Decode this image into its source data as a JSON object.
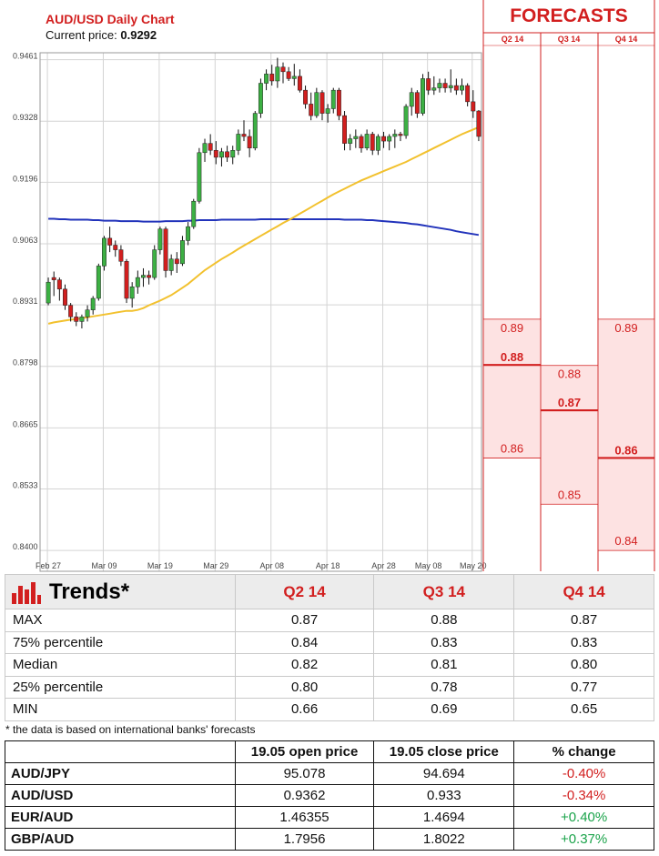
{
  "chart_data": {
    "type": "candlestick",
    "title": "AUD/USD Daily Chart",
    "current_price_label": "Current price:",
    "current_price": "0.9292",
    "ylim": [
      0.8355,
      0.9472
    ],
    "y_ticks": [
      "0.9461",
      "0.9328",
      "0.9196",
      "0.9063",
      "0.8931",
      "0.8798",
      "0.8665",
      "0.8533",
      "0.8400"
    ],
    "x_ticks": [
      "Feb 27",
      "Mar 09",
      "Mar 19",
      "Mar 29",
      "Apr 08",
      "Apr 18",
      "Apr 28",
      "May 08",
      "May 20"
    ],
    "grid": true,
    "candles": [
      [
        0.8935,
        0.899,
        0.893,
        0.898
      ],
      [
        0.899,
        0.9003,
        0.895,
        0.8985
      ],
      [
        0.8985,
        0.899,
        0.894,
        0.8965
      ],
      [
        0.8965,
        0.8975,
        0.892,
        0.893
      ],
      [
        0.893,
        0.8935,
        0.8895,
        0.8905
      ],
      [
        0.8905,
        0.8915,
        0.8885,
        0.8895
      ],
      [
        0.8895,
        0.891,
        0.888,
        0.8905
      ],
      [
        0.8905,
        0.893,
        0.8895,
        0.892
      ],
      [
        0.892,
        0.895,
        0.891,
        0.8945
      ],
      [
        0.8945,
        0.902,
        0.894,
        0.9015
      ],
      [
        0.9015,
        0.908,
        0.9005,
        0.9075
      ],
      [
        0.9075,
        0.91,
        0.9045,
        0.906
      ],
      [
        0.906,
        0.907,
        0.9035,
        0.905
      ],
      [
        0.905,
        0.906,
        0.9015,
        0.9025
      ],
      [
        0.9025,
        0.903,
        0.8935,
        0.8945
      ],
      [
        0.8945,
        0.898,
        0.8925,
        0.897
      ],
      [
        0.897,
        0.9005,
        0.8955,
        0.899
      ],
      [
        0.899,
        0.901,
        0.897,
        0.8995
      ],
      [
        0.8995,
        0.9005,
        0.8975,
        0.899
      ],
      [
        0.899,
        0.906,
        0.8985,
        0.905
      ],
      [
        0.905,
        0.91,
        0.904,
        0.9095
      ],
      [
        0.9095,
        0.91,
        0.899,
        0.9005
      ],
      [
        0.9005,
        0.904,
        0.8995,
        0.903
      ],
      [
        0.903,
        0.9045,
        0.9,
        0.902
      ],
      [
        0.902,
        0.908,
        0.9015,
        0.907
      ],
      [
        0.907,
        0.911,
        0.906,
        0.91
      ],
      [
        0.91,
        0.916,
        0.9095,
        0.9155
      ],
      [
        0.9155,
        0.927,
        0.915,
        0.926
      ],
      [
        0.926,
        0.929,
        0.924,
        0.928
      ],
      [
        0.928,
        0.93,
        0.9255,
        0.9265
      ],
      [
        0.9265,
        0.9285,
        0.9235,
        0.925
      ],
      [
        0.925,
        0.927,
        0.923,
        0.9262
      ],
      [
        0.9262,
        0.9275,
        0.924,
        0.925
      ],
      [
        0.925,
        0.9275,
        0.9235,
        0.9265
      ],
      [
        0.9265,
        0.931,
        0.9255,
        0.93
      ],
      [
        0.93,
        0.933,
        0.9285,
        0.9295
      ],
      [
        0.9295,
        0.931,
        0.925,
        0.927
      ],
      [
        0.927,
        0.935,
        0.9265,
        0.9345
      ],
      [
        0.9345,
        0.942,
        0.9335,
        0.941
      ],
      [
        0.941,
        0.944,
        0.9395,
        0.943
      ],
      [
        0.943,
        0.945,
        0.9405,
        0.9415
      ],
      [
        0.9415,
        0.9465,
        0.94,
        0.9445
      ],
      [
        0.9445,
        0.9455,
        0.941,
        0.9435
      ],
      [
        0.9435,
        0.9445,
        0.9415,
        0.942
      ],
      [
        0.942,
        0.9452,
        0.9405,
        0.9425
      ],
      [
        0.9425,
        0.944,
        0.939,
        0.9395
      ],
      [
        0.9395,
        0.9405,
        0.9355,
        0.9365
      ],
      [
        0.9365,
        0.939,
        0.933,
        0.934
      ],
      [
        0.934,
        0.94,
        0.9335,
        0.939
      ],
      [
        0.939,
        0.9395,
        0.933,
        0.9345
      ],
      [
        0.9345,
        0.9365,
        0.9325,
        0.9355
      ],
      [
        0.9355,
        0.94,
        0.9345,
        0.9395
      ],
      [
        0.9395,
        0.94,
        0.933,
        0.934
      ],
      [
        0.934,
        0.935,
        0.9265,
        0.928
      ],
      [
        0.928,
        0.93,
        0.9265,
        0.929
      ],
      [
        0.929,
        0.931,
        0.927,
        0.9295
      ],
      [
        0.9295,
        0.93,
        0.926,
        0.927
      ],
      [
        0.927,
        0.931,
        0.9265,
        0.93
      ],
      [
        0.93,
        0.9305,
        0.9255,
        0.9265
      ],
      [
        0.9265,
        0.93,
        0.9255,
        0.9295
      ],
      [
        0.9295,
        0.9305,
        0.927,
        0.9285
      ],
      [
        0.9285,
        0.93,
        0.9265,
        0.9295
      ],
      [
        0.9295,
        0.931,
        0.927,
        0.93
      ],
      [
        0.93,
        0.9305,
        0.9285,
        0.9297
      ],
      [
        0.9297,
        0.9365,
        0.929,
        0.936
      ],
      [
        0.936,
        0.94,
        0.934,
        0.939
      ],
      [
        0.939,
        0.9395,
        0.9335,
        0.9345
      ],
      [
        0.9345,
        0.943,
        0.934,
        0.942
      ],
      [
        0.942,
        0.9435,
        0.9385,
        0.9395
      ],
      [
        0.9395,
        0.9425,
        0.9385,
        0.94
      ],
      [
        0.94,
        0.942,
        0.939,
        0.941
      ],
      [
        0.941,
        0.942,
        0.939,
        0.94
      ],
      [
        0.94,
        0.944,
        0.939,
        0.9405
      ],
      [
        0.9405,
        0.942,
        0.9385,
        0.9395
      ],
      [
        0.9395,
        0.942,
        0.9385,
        0.9405
      ],
      [
        0.9405,
        0.941,
        0.936,
        0.937
      ],
      [
        0.937,
        0.9395,
        0.9335,
        0.935
      ],
      [
        0.935,
        0.9352,
        0.9285,
        0.9295
      ]
    ],
    "ma_short": [
      0.889,
      0.8893,
      0.8895,
      0.8897,
      0.8899,
      0.89,
      0.8902,
      0.8904,
      0.8906,
      0.8908,
      0.891,
      0.8912,
      0.8914,
      0.8916,
      0.8918,
      0.8918,
      0.892,
      0.8924,
      0.893,
      0.8935,
      0.894,
      0.8946,
      0.8952,
      0.896,
      0.8968,
      0.8976,
      0.8986,
      0.8996,
      0.9006,
      0.9014,
      0.9022,
      0.903,
      0.9037,
      0.9044,
      0.9052,
      0.9059,
      0.9066,
      0.9073,
      0.908,
      0.9087,
      0.9094,
      0.9101,
      0.9108,
      0.9114,
      0.9121,
      0.9128,
      0.9135,
      0.9142,
      0.9149,
      0.9156,
      0.9163,
      0.917,
      0.9176,
      0.9182,
      0.9188,
      0.9194,
      0.92,
      0.9205,
      0.921,
      0.9215,
      0.922,
      0.9225,
      0.923,
      0.9235,
      0.924,
      0.9246,
      0.9252,
      0.9258,
      0.9264,
      0.927,
      0.9276,
      0.9282,
      0.9288,
      0.9294,
      0.93,
      0.9305,
      0.931,
      0.9315
    ],
    "ma_long": [
      0.9117,
      0.9117,
      0.9116,
      0.9116,
      0.9115,
      0.9115,
      0.9115,
      0.9115,
      0.9114,
      0.9114,
      0.9113,
      0.9113,
      0.9113,
      0.9112,
      0.9112,
      0.9112,
      0.9112,
      0.9111,
      0.9111,
      0.9111,
      0.9111,
      0.9112,
      0.9112,
      0.9112,
      0.9112,
      0.9113,
      0.9113,
      0.9114,
      0.9114,
      0.9114,
      0.9114,
      0.9115,
      0.9115,
      0.9115,
      0.9115,
      0.9115,
      0.9115,
      0.9115,
      0.9116,
      0.9116,
      0.9116,
      0.9116,
      0.9116,
      0.9116,
      0.9116,
      0.9116,
      0.9116,
      0.9116,
      0.9116,
      0.9116,
      0.9116,
      0.9116,
      0.9116,
      0.9115,
      0.9115,
      0.9115,
      0.9115,
      0.9114,
      0.9114,
      0.9113,
      0.9112,
      0.9111,
      0.911,
      0.9109,
      0.9108,
      0.9106,
      0.9105,
      0.9103,
      0.9101,
      0.9099,
      0.9097,
      0.9095,
      0.9093,
      0.909,
      0.9088,
      0.9086,
      0.9084,
      0.9082
    ],
    "forecasts": {
      "title": "FORECASTS",
      "columns": [
        {
          "label": "Q2 14",
          "high": "0.89",
          "mid": "0.88",
          "low": "0.86",
          "high_v": 0.89,
          "mid_v": 0.8801,
          "low_v": 0.86
        },
        {
          "label": "Q3 14",
          "high": "0.88",
          "mid": "0.87",
          "low": "0.85",
          "high_v": 0.88,
          "mid_v": 0.8703,
          "low_v": 0.85
        },
        {
          "label": "Q4 14",
          "high": "0.89",
          "mid": "0.86",
          "low": "0.84",
          "high_v": 0.89,
          "mid_v": 0.86,
          "low_v": 0.84
        }
      ]
    }
  },
  "trends": {
    "title": "Trends*",
    "columns": [
      "Q2 14",
      "Q3 14",
      "Q4 14"
    ],
    "rows": [
      {
        "label": "MAX",
        "values": [
          "0.87",
          "0.88",
          "0.87"
        ]
      },
      {
        "label": "75% percentile",
        "values": [
          "0.84",
          "0.83",
          "0.83"
        ]
      },
      {
        "label": "Median",
        "values": [
          "0.82",
          "0.81",
          "0.80"
        ]
      },
      {
        "label": "25% percentile",
        "values": [
          "0.80",
          "0.78",
          "0.77"
        ]
      },
      {
        "label": "MIN",
        "values": [
          "0.66",
          "0.69",
          "0.65"
        ]
      }
    ],
    "footnote": "* the data is based on international banks' forecasts"
  },
  "quotes": {
    "headers": [
      "",
      "19.05 open price",
      "19.05 close price",
      "% change"
    ],
    "rows": [
      {
        "pair": "AUD/JPY",
        "open": "95.078",
        "close": "94.694",
        "change": "-0.40%",
        "dir": "neg"
      },
      {
        "pair": "AUD/USD",
        "open": "0.9362",
        "close": "0.933",
        "change": "-0.34%",
        "dir": "neg"
      },
      {
        "pair": "EUR/AUD",
        "open": "1.46355",
        "close": "1.4694",
        "change": "+0.40%",
        "dir": "pos"
      },
      {
        "pair": "GBP/AUD",
        "open": "1.7956",
        "close": "1.8022",
        "change": "+0.37%",
        "dir": "pos"
      }
    ]
  },
  "colors": {
    "up": "#3cb043",
    "down": "#d21f1f",
    "ma_short": "#f2c12e",
    "ma_long": "#2233bb",
    "forecast_fill": "#fde2e2",
    "forecast_line": "#d21f1f"
  }
}
